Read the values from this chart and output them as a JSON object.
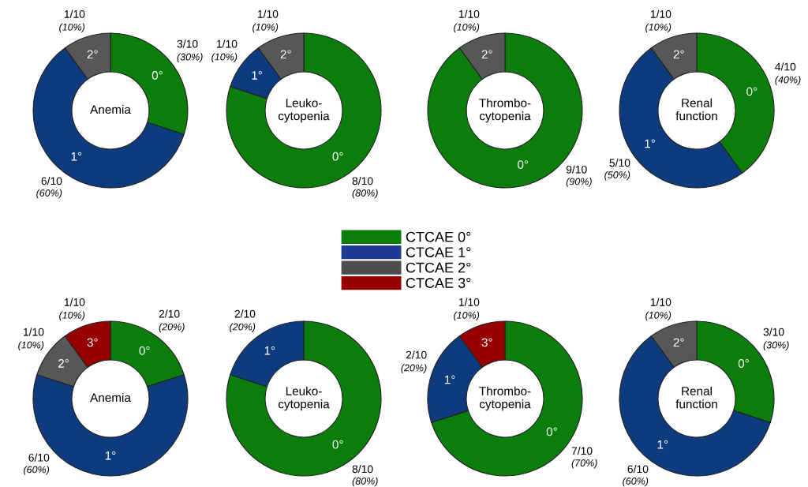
{
  "chart_data": [
    {
      "type": "donut",
      "title": "Anemia",
      "categories": [
        "0°",
        "1°",
        "2°"
      ],
      "values": [
        30,
        60,
        10
      ],
      "colors": [
        "#0b7d0b",
        "#0e3b7e",
        "#575757"
      ],
      "value_labels": [
        "3/10\n(30%)",
        "6/10\n(60%)",
        "1/10\n(10%)"
      ]
    },
    {
      "type": "donut",
      "title": "Leuko-\ncytopenia",
      "categories": [
        "0°",
        "1°",
        "2°"
      ],
      "values": [
        80,
        10,
        10
      ],
      "colors": [
        "#0b7d0b",
        "#0e3b7e",
        "#575757"
      ],
      "value_labels": [
        "8/10\n(80%)",
        "1/10\n(10%)",
        "1/10\n(10%)"
      ]
    },
    {
      "type": "donut",
      "title": "Thrombo-\ncytopenia",
      "categories": [
        "0°",
        "2°"
      ],
      "values": [
        90,
        10
      ],
      "colors": [
        "#0b7d0b",
        "#575757"
      ],
      "value_labels": [
        "9/10\n(90%)",
        "1/10\n(10%)"
      ]
    },
    {
      "type": "donut",
      "title": "Renal\nfunction",
      "categories": [
        "0°",
        "1°",
        "2°"
      ],
      "values": [
        40,
        50,
        10
      ],
      "colors": [
        "#0b7d0b",
        "#0e3b7e",
        "#575757"
      ],
      "value_labels": [
        "4/10\n(40%)",
        "5/10\n(50%)",
        "1/10\n(10%)"
      ]
    },
    {
      "type": "other",
      "categories": [
        "CTCAE 0°",
        "CTCAE 1°",
        "CTCAE 2°",
        "CTCAE 3°"
      ],
      "colors": [
        "#0b7d0b",
        "#1f3a93",
        "#4d4d4d",
        "#960000"
      ]
    },
    {
      "type": "donut",
      "title": "Anemia",
      "categories": [
        "0°",
        "1°",
        "2°",
        "3°"
      ],
      "values": [
        20,
        60,
        10,
        10
      ],
      "colors": [
        "#0b7d0b",
        "#0e3b7e",
        "#575757",
        "#960000"
      ],
      "value_labels": [
        "2/10\n(20%)",
        "6/10\n(60%)",
        "1/10\n(10%)",
        "1/10\n(10%)"
      ]
    },
    {
      "type": "donut",
      "title": "Leuko-\ncytopenia",
      "categories": [
        "0°",
        "1°"
      ],
      "values": [
        80,
        20
      ],
      "colors": [
        "#0b7d0b",
        "#0e3b7e"
      ],
      "value_labels": [
        "8/10\n(80%)",
        "2/10\n(20%)"
      ]
    },
    {
      "type": "donut",
      "title": "Thrombo-\ncytopenia",
      "categories": [
        "0°",
        "1°",
        "3°"
      ],
      "values": [
        70,
        20,
        10
      ],
      "colors": [
        "#0b7d0b",
        "#0e3b7e",
        "#960000"
      ],
      "value_labels": [
        "7/10\n(70%)",
        "2/10\n(20%)",
        "1/10\n(10%)"
      ]
    },
    {
      "type": "donut",
      "title": "Renal\nfunction",
      "categories": [
        "0°",
        "1°",
        "2°"
      ],
      "values": [
        30,
        60,
        10
      ],
      "colors": [
        "#0b7d0b",
        "#0e3b7e",
        "#575757"
      ],
      "value_labels": [
        "3/10\n(30%)",
        "6/10\n(60%)",
        "1/10\n(10%)"
      ]
    }
  ]
}
